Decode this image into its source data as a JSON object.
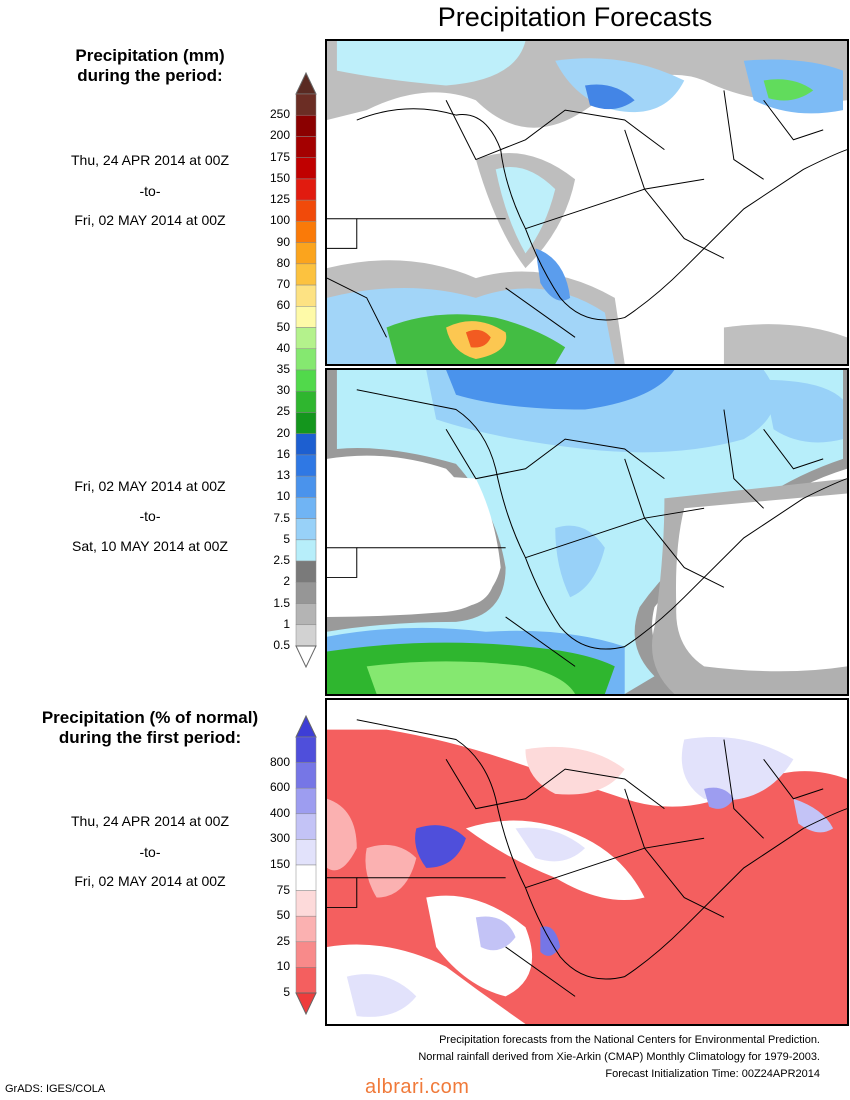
{
  "title": "Precipitation Forecasts",
  "section1": {
    "heading_line1": "Precipitation (mm)",
    "heading_line2": "during the period:"
  },
  "period1": {
    "start": "Thu, 24 APR 2014 at 00Z",
    "to": "-to-",
    "end": "Fri, 02 MAY 2014 at 00Z"
  },
  "period2": {
    "start": "Fri, 02 MAY 2014 at 00Z",
    "to": "-to-",
    "end": "Sat, 10 MAY 2014 at 00Z"
  },
  "section2": {
    "heading_line1": "Precipitation (% of normal)",
    "heading_line2": "during the first period:"
  },
  "period3": {
    "start": "Thu, 24 APR 2014 at 00Z",
    "to": "-to-",
    "end": "Fri, 02 MAY 2014 at 00Z"
  },
  "precip_scale": {
    "labels": [
      "250",
      "200",
      "175",
      "150",
      "125",
      "100",
      "90",
      "80",
      "70",
      "60",
      "50",
      "40",
      "35",
      "30",
      "25",
      "20",
      "16",
      "13",
      "10",
      "7.5",
      "5",
      "2.5",
      "2",
      "1.5",
      "1",
      "0.5"
    ],
    "colors": [
      "#6b2d24",
      "#8b0000",
      "#a40000",
      "#c00000",
      "#e11b0f",
      "#f14a0a",
      "#fa7a08",
      "#fba41d",
      "#fcc23f",
      "#fde283",
      "#fefaa8",
      "#b4f28c",
      "#85e870",
      "#51d94b",
      "#2fb62f",
      "#14961d",
      "#1d5fd0",
      "#2f78e4",
      "#4a93ec",
      "#70b4f4",
      "#98d1f8",
      "#b7eefa",
      "#7a7a7a",
      "#969696",
      "#b4b4b4",
      "#d2d2d2"
    ],
    "top_arrow": "#5a2a22",
    "bottom_arrow": "#ffffff"
  },
  "percent_scale": {
    "labels": [
      "800",
      "600",
      "400",
      "300",
      "150",
      "75",
      "50",
      "25",
      "10",
      "5"
    ],
    "colors": [
      "#4f4fdb",
      "#7676e6",
      "#9d9df0",
      "#c3c3f6",
      "#e2e2fb",
      "#ffffff",
      "#fddada",
      "#fbb1b1",
      "#f88a8a",
      "#f45f5f"
    ],
    "top_arrow": "#3d3dd6",
    "bottom_arrow": "#ee3c3c"
  },
  "footer": {
    "line1": "Precipitation forecasts from the National Centers for Environmental Prediction.",
    "line2": "Normal rainfall derived from Xie-Arkin (CMAP) Monthly Climatology for 1979-2003.",
    "line3": "Forecast Initialization Time: 00Z24APR2014"
  },
  "credit": "GrADS: IGES/COLA",
  "watermark": "albrari.com"
}
